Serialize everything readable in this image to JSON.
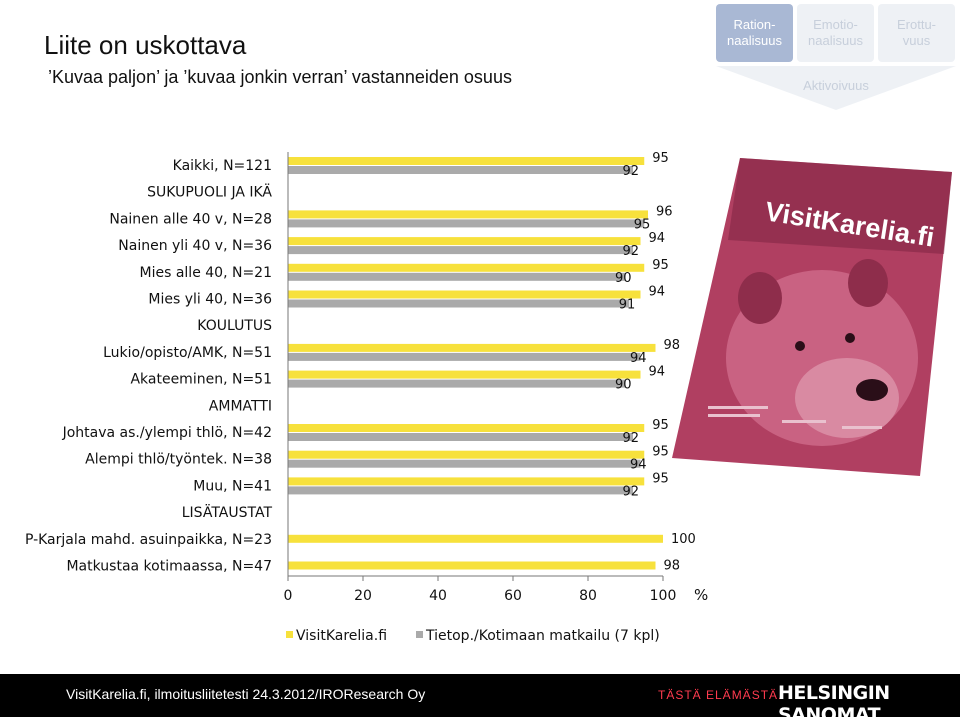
{
  "header": {
    "title": "Liite on uskottava",
    "subtitle": "’Kuvaa paljon’ ja ’kuvaa jonkin verran’ vastanneiden osuus"
  },
  "tabs": [
    {
      "label": "Ration-\nnaalisuus",
      "active": true
    },
    {
      "label": "Emotio-\nnaalisuus",
      "active": false
    },
    {
      "label": "Erottu-\nvuus",
      "active": false
    }
  ],
  "tab_group_label": "Aktivoivuus",
  "magazine": {
    "logo": "VisitKarelia.fi"
  },
  "footer": {
    "source": "VisitKarelia.fi, ilmoitusliitetesti 24.3.2012/IROResearch Oy",
    "slogan": "TÄSTÄ ELÄMÄSTÄ.",
    "brand": "HELSINGIN SANOMAT"
  },
  "colors": {
    "series1": "#f7e13c",
    "series2": "#aaaaaa",
    "tab_active": "#a9b8d4"
  },
  "chart_data": {
    "type": "bar",
    "orientation": "horizontal",
    "categories": [
      "Kaikki, N=121",
      "SUKUPUOLI JA IKÄ",
      "Nainen alle 40 v, N=28",
      "Nainen yli 40 v, N=36",
      "Mies alle 40, N=21",
      "Mies yli 40, N=36",
      "KOULUTUS",
      "Lukio/opisto/AMK, N=51",
      "Akateeminen, N=51",
      "AMMATTI",
      "Johtava as./ylempi thlö, N=42",
      "Alempi thlö/työntek. N=38",
      "Muu, N=41",
      "LISÄTAUSTAT",
      "P-Karjala mahd. asuinpaikka, N=23",
      "Matkustaa  kotimaassa, N=47"
    ],
    "series": [
      {
        "name": "VisitKarelia.fi",
        "values": [
          95,
          null,
          96,
          94,
          95,
          94,
          null,
          98,
          94,
          null,
          95,
          95,
          95,
          null,
          100,
          98
        ]
      },
      {
        "name": "Tietop./Kotimaan matkailu (7 kpl)",
        "values": [
          92,
          null,
          95,
          92,
          90,
          91,
          null,
          94,
          90,
          null,
          92,
          94,
          92,
          null,
          null,
          null
        ]
      }
    ],
    "xlim": [
      0,
      100
    ],
    "xticks": [
      "0",
      "20",
      "40",
      "60",
      "80",
      "100"
    ],
    "xunit": "%",
    "legend": "bottom",
    "grid": false
  }
}
